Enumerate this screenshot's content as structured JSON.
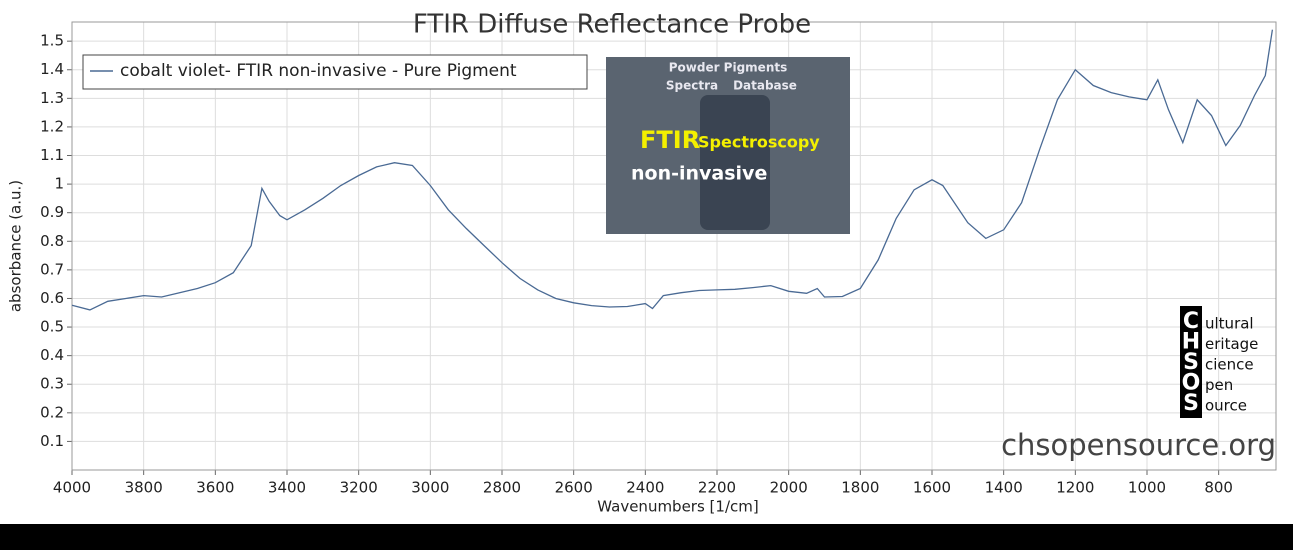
{
  "chart_data": {
    "type": "line",
    "title": "FTIR Diffuse Reflectance Probe",
    "x_label": "Wavenumbers [1/cm]",
    "y_label": "absorbance (a.u.)",
    "xlim": [
      4000,
      640
    ],
    "ylim": [
      0,
      1.567
    ],
    "xticks": [
      4000,
      3800,
      3600,
      3400,
      3200,
      3000,
      2800,
      2600,
      2400,
      2200,
      2000,
      1800,
      1600,
      1400,
      1200,
      1000,
      800
    ],
    "yticks": [
      0.1,
      0.2,
      0.3,
      0.4,
      0.5,
      0.6,
      0.7,
      0.8,
      0.9,
      1,
      1.1,
      1.2,
      1.3,
      1.4,
      1.5
    ],
    "grid": true,
    "legend": "top-left",
    "series": [
      {
        "name": "cobalt violet- FTIR non-invasive - Pure Pigment",
        "color": "#4a6a94",
        "x": [
          4000,
          3950,
          3900,
          3850,
          3800,
          3750,
          3700,
          3650,
          3600,
          3550,
          3500,
          3470,
          3450,
          3420,
          3400,
          3350,
          3300,
          3250,
          3200,
          3150,
          3100,
          3050,
          3000,
          2950,
          2900,
          2850,
          2800,
          2750,
          2700,
          2650,
          2600,
          2550,
          2500,
          2450,
          2400,
          2380,
          2350,
          2300,
          2250,
          2200,
          2150,
          2100,
          2050,
          2000,
          1950,
          1920,
          1900,
          1850,
          1800,
          1750,
          1700,
          1650,
          1600,
          1570,
          1500,
          1450,
          1400,
          1350,
          1300,
          1250,
          1200,
          1150,
          1100,
          1050,
          1000,
          970,
          940,
          900,
          860,
          820,
          780,
          740,
          700,
          670,
          650
        ],
        "values": [
          0.576,
          0.56,
          0.59,
          0.6,
          0.61,
          0.605,
          0.62,
          0.635,
          0.655,
          0.69,
          0.785,
          0.985,
          0.94,
          0.89,
          0.875,
          0.91,
          0.95,
          0.995,
          1.03,
          1.06,
          1.075,
          1.065,
          0.995,
          0.91,
          0.845,
          0.785,
          0.725,
          0.67,
          0.63,
          0.6,
          0.585,
          0.575,
          0.57,
          0.572,
          0.582,
          0.565,
          0.61,
          0.62,
          0.628,
          0.63,
          0.632,
          0.638,
          0.645,
          0.625,
          0.618,
          0.635,
          0.605,
          0.607,
          0.635,
          0.735,
          0.88,
          0.98,
          1.015,
          0.995,
          0.865,
          0.81,
          0.84,
          0.935,
          1.12,
          1.295,
          1.4,
          1.345,
          1.32,
          1.305,
          1.295,
          1.365,
          1.26,
          1.145,
          1.295,
          1.24,
          1.135,
          1.205,
          1.31,
          1.38,
          1.54
        ]
      }
    ]
  },
  "inset": {
    "line1": "Powder Pigments",
    "line2": "Spectra",
    "line3": "Database",
    "heading": "FTIR",
    "heading2": "Spectroscopy",
    "sub": "non-invasive"
  },
  "logo": {
    "letters": [
      "C",
      "H",
      "S",
      "O",
      "S"
    ],
    "words": [
      "ultural",
      "eritage",
      "cience",
      "pen",
      "ource"
    ]
  },
  "watermark": "chsopensource.org"
}
